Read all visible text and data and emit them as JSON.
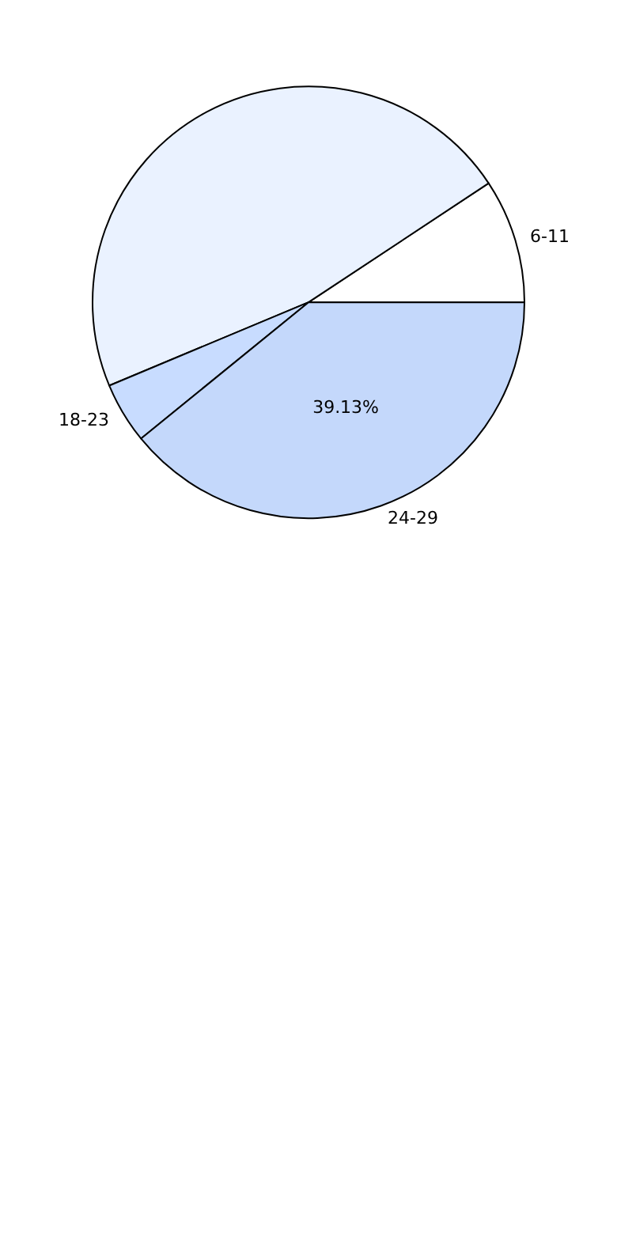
{
  "chart_data": {
    "type": "pie",
    "categories": [
      "6-11",
      null,
      "18-23",
      "24-29"
    ],
    "values": [
      9.3,
      47.0,
      4.57,
      39.13
    ],
    "colors": [
      "#ffffff",
      "#eaf2ff",
      "#c8dcff",
      "#c4d8fb"
    ],
    "value_labels": [
      null,
      null,
      null,
      "39.13%"
    ],
    "legend": false
  }
}
